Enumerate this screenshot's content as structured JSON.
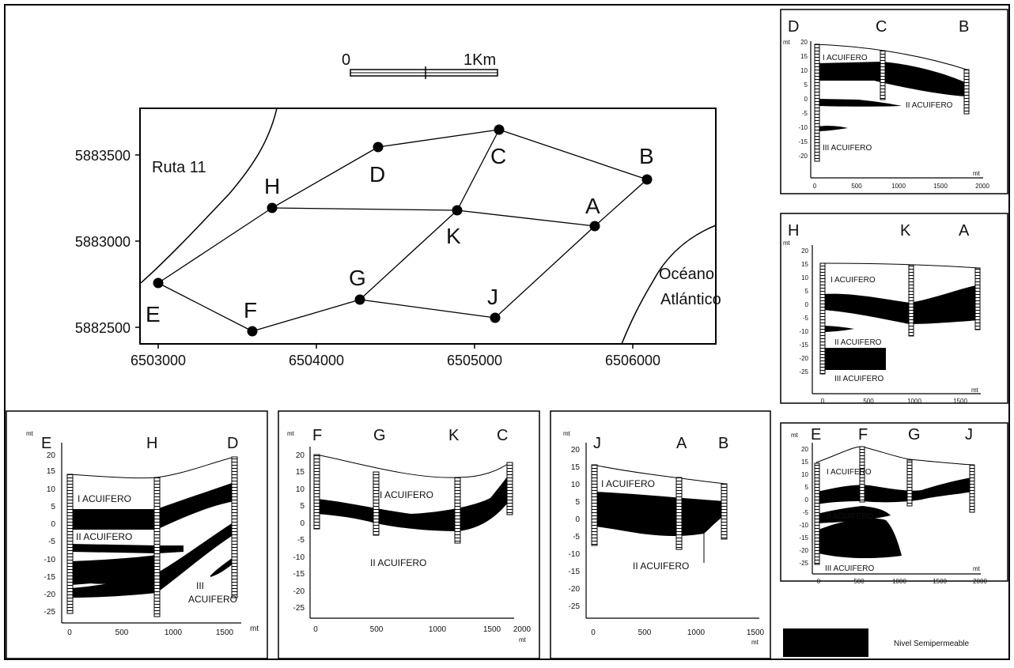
{
  "scale": {
    "zero": "0",
    "one": "1Km"
  },
  "map": {
    "road_label": "Ruta 11",
    "ocean_label_1": "Océano",
    "ocean_label_2": "Atlántico",
    "y_ticks": [
      "5883500",
      "5883000",
      "5882500"
    ],
    "x_ticks": [
      "6503000",
      "6504000",
      "6505000",
      "6506000"
    ],
    "points": {
      "A": "A",
      "B": "B",
      "C": "C",
      "D": "D",
      "E": "E",
      "F": "F",
      "G": "G",
      "H": "H",
      "J": "J",
      "K": "K"
    }
  },
  "legend": {
    "label": "Nivel Semipermeable"
  },
  "sections": {
    "dcb": {
      "unit_y": "mt",
      "unit_x": "mt",
      "wells": [
        "D",
        "C",
        "B"
      ],
      "y_ticks": [
        "20",
        "15",
        "10",
        "5",
        "0",
        "-5",
        "-10",
        "-15",
        "-20"
      ],
      "x_ticks": [
        "0",
        "500",
        "1000",
        "1500",
        "2000"
      ],
      "aquifers": [
        "I ACUIFERO",
        "II ACUIFERO",
        "III ACUIFERO"
      ]
    },
    "hka": {
      "unit_y": "mt",
      "unit_x": "mt",
      "wells": [
        "H",
        "K",
        "A"
      ],
      "y_ticks": [
        "20",
        "15",
        "10",
        "5",
        "0",
        "-5",
        "-10",
        "-15",
        "-20",
        "-25"
      ],
      "x_ticks": [
        "0",
        "500",
        "1000",
        "1500"
      ],
      "aquifers": [
        "I ACUIFERO",
        "II ACUIFERO",
        "III ACUIFERO"
      ]
    },
    "efgj": {
      "unit_y": "mt",
      "unit_x": "mt",
      "wells": [
        "E",
        "F",
        "G",
        "J"
      ],
      "y_ticks": [
        "20",
        "15",
        "10",
        "5",
        "0",
        "-5",
        "-10",
        "-15",
        "-20",
        "-25"
      ],
      "x_ticks": [
        "0",
        "500",
        "1000",
        "1500",
        "2000"
      ],
      "aquifers": [
        "I ACUIFERO",
        "II ACUIFERO",
        "III ACUIFERO"
      ]
    },
    "ehd": {
      "unit_y": "mt",
      "unit_x": "mt",
      "wells": [
        "E",
        "H",
        "D"
      ],
      "y_ticks": [
        "20",
        "15",
        "10",
        "5",
        "0",
        "-5",
        "-10",
        "-15",
        "-20",
        "-25"
      ],
      "x_ticks": [
        "0",
        "500",
        "1000",
        "1500"
      ],
      "aquifers": [
        "I ACUIFERO",
        "II ACUIFERO",
        "III",
        "ACUIFERO"
      ]
    },
    "fgkc": {
      "unit_y": "mt",
      "unit_x": "mt",
      "wells": [
        "F",
        "G",
        "K",
        "C"
      ],
      "y_ticks": [
        "20",
        "15",
        "10",
        "5",
        "0",
        "-5",
        "-10",
        "-15",
        "-20",
        "-25"
      ],
      "x_ticks": [
        "0",
        "500",
        "1000",
        "1500",
        "2000"
      ],
      "aquifers": [
        "I ACUIFERO",
        "II ACUIFERO"
      ]
    },
    "jab": {
      "unit_y": "mt",
      "unit_x": "mt",
      "wells": [
        "J",
        "A",
        "B"
      ],
      "y_ticks": [
        "20",
        "15",
        "10",
        "5",
        "0",
        "-5",
        "-10",
        "-15",
        "-20",
        "-25"
      ],
      "x_ticks": [
        "0",
        "500",
        "1000",
        "1500"
      ],
      "aquifers": [
        "I ACUIFERO",
        "II ACUIFERO"
      ]
    }
  }
}
